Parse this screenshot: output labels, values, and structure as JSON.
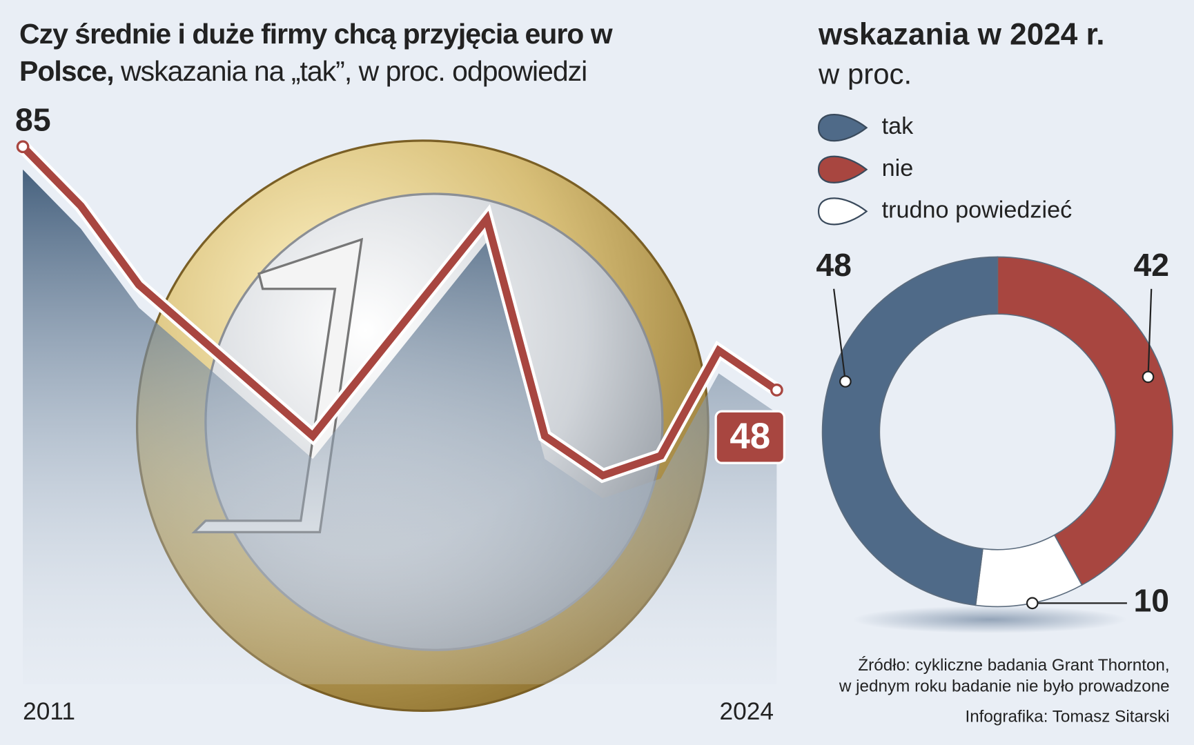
{
  "chart_data": [
    {
      "type": "line",
      "title": "Czy średnie i duże firmy chcą przyjęcia euro w Polsce,",
      "subtitle": "wskazania na „tak”, w proc. odpowiedzi",
      "x": [
        2011,
        2012,
        2013,
        2016,
        2019,
        2020,
        2021,
        2022,
        2023,
        2024
      ],
      "series": [
        {
          "name": "tak",
          "color": "#a84640",
          "values": [
            85,
            76,
            64,
            41,
            74,
            41,
            35,
            38,
            54,
            48
          ]
        }
      ],
      "xlim": [
        2011,
        2024
      ],
      "xticks": [
        2011,
        2024
      ],
      "ylim": [
        0,
        100
      ]
    },
    {
      "type": "donut",
      "title": "wskazania w 2024 r.",
      "subtitle": "w proc.",
      "categories": [
        "tak",
        "nie",
        "trudno powiedzieć"
      ],
      "values": [
        48,
        42,
        10
      ],
      "colors": [
        "#4f6a88",
        "#a84640",
        "#ffffff"
      ],
      "source": [
        "Źródło: cykliczne badania Grant Thornton,",
        "w jednym roku badanie nie było prowadzone"
      ],
      "credit": "Infografika: Tomasz Sitarski"
    }
  ]
}
